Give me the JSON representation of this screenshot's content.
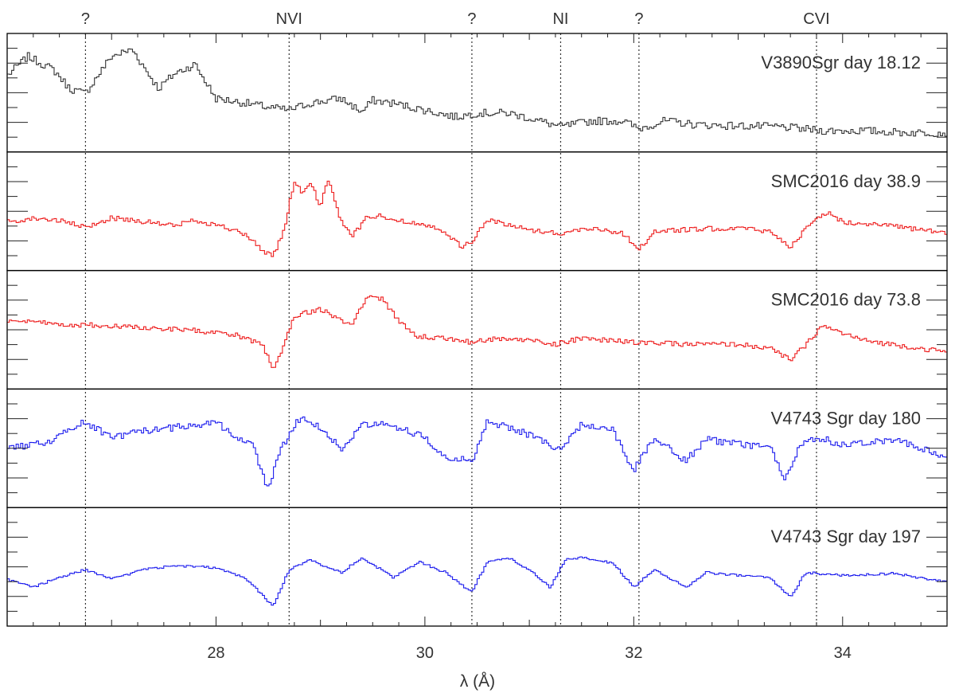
{
  "chart_data": {
    "type": "line",
    "xlabel": "λ (Å)",
    "xlim": [
      26.0,
      35.0
    ],
    "x_ticks": [
      "28",
      "30",
      "32",
      "34"
    ],
    "x_tick_values": [
      28,
      30,
      32,
      34
    ],
    "lines": [
      {
        "x": 26.75,
        "label": "?"
      },
      {
        "x": 28.7,
        "label": "NVI"
      },
      {
        "x": 30.45,
        "label": "?"
      },
      {
        "x": 31.3,
        "label": "NI"
      },
      {
        "x": 32.05,
        "label": "?"
      },
      {
        "x": 33.75,
        "label": "CVI"
      }
    ],
    "ylim": [
      0,
      1
    ],
    "series": [
      {
        "name": "V3890Sgr day 18.12",
        "color": "#333333",
        "noise": 0.04,
        "x": [
          26.0,
          26.2,
          26.45,
          26.6,
          26.75,
          27.0,
          27.2,
          27.45,
          27.6,
          27.8,
          28.0,
          28.3,
          28.5,
          28.7,
          28.9,
          29.2,
          29.4,
          29.5,
          29.7,
          30.0,
          30.3,
          30.5,
          30.8,
          31.0,
          31.3,
          31.6,
          31.9,
          32.05,
          32.3,
          32.6,
          33.0,
          33.4,
          33.8,
          34.2,
          34.6,
          35.0
        ],
        "y": [
          0.68,
          0.88,
          0.74,
          0.55,
          0.5,
          0.88,
          0.95,
          0.55,
          0.7,
          0.8,
          0.45,
          0.4,
          0.36,
          0.33,
          0.4,
          0.45,
          0.31,
          0.43,
          0.4,
          0.33,
          0.26,
          0.3,
          0.3,
          0.25,
          0.16,
          0.22,
          0.22,
          0.14,
          0.22,
          0.18,
          0.17,
          0.16,
          0.12,
          0.12,
          0.1,
          0.1
        ]
      },
      {
        "name": "SMC2016 day 38.9",
        "color": "#ee1c1c",
        "noise": 0.025,
        "x": [
          26.0,
          26.3,
          26.55,
          26.75,
          27.0,
          27.2,
          27.6,
          27.8,
          28.1,
          28.3,
          28.45,
          28.55,
          28.65,
          28.75,
          28.82,
          28.92,
          29.0,
          29.08,
          29.2,
          29.3,
          29.45,
          29.6,
          29.8,
          30.0,
          30.2,
          30.35,
          30.45,
          30.6,
          31.0,
          31.3,
          31.6,
          31.9,
          32.05,
          32.2,
          32.5,
          33.0,
          33.3,
          33.5,
          33.7,
          33.85,
          34.0,
          34.3,
          35.0
        ],
        "y": [
          0.4,
          0.44,
          0.4,
          0.34,
          0.44,
          0.42,
          0.36,
          0.42,
          0.34,
          0.26,
          0.1,
          0.06,
          0.3,
          0.82,
          0.7,
          0.78,
          0.55,
          0.85,
          0.4,
          0.25,
          0.45,
          0.46,
          0.4,
          0.38,
          0.3,
          0.14,
          0.2,
          0.42,
          0.32,
          0.28,
          0.34,
          0.28,
          0.12,
          0.3,
          0.32,
          0.34,
          0.3,
          0.15,
          0.38,
          0.5,
          0.4,
          0.38,
          0.28
        ]
      },
      {
        "name": "SMC2016 day 73.8",
        "color": "#ee1c1c",
        "noise": 0.025,
        "x": [
          26.0,
          26.6,
          27.0,
          27.8,
          28.2,
          28.45,
          28.55,
          28.75,
          29.0,
          29.3,
          29.45,
          29.6,
          29.75,
          29.9,
          30.2,
          30.45,
          30.7,
          31.0,
          31.25,
          31.5,
          32.0,
          32.5,
          33.0,
          33.3,
          33.5,
          33.65,
          33.8,
          34.2,
          35.0
        ],
        "y": [
          0.6,
          0.56,
          0.55,
          0.5,
          0.45,
          0.35,
          0.08,
          0.65,
          0.72,
          0.55,
          0.85,
          0.82,
          0.6,
          0.45,
          0.42,
          0.38,
          0.42,
          0.4,
          0.36,
          0.42,
          0.38,
          0.36,
          0.36,
          0.32,
          0.2,
          0.35,
          0.55,
          0.4,
          0.28
        ]
      },
      {
        "name": "V4743 Sgr day 180",
        "color": "#1c1cee",
        "noise": 0.035,
        "x": [
          26.0,
          26.4,
          26.75,
          27.0,
          27.3,
          27.6,
          28.0,
          28.2,
          28.35,
          28.5,
          28.6,
          28.75,
          28.85,
          29.0,
          29.2,
          29.4,
          29.6,
          29.8,
          30.0,
          30.2,
          30.45,
          30.6,
          30.8,
          31.0,
          31.2,
          31.3,
          31.5,
          31.8,
          32.0,
          32.2,
          32.5,
          32.7,
          33.0,
          33.3,
          33.45,
          33.6,
          33.75,
          34.0,
          34.5,
          35.0
        ],
        "y": [
          0.5,
          0.58,
          0.78,
          0.62,
          0.68,
          0.72,
          0.78,
          0.62,
          0.55,
          0.08,
          0.45,
          0.75,
          0.82,
          0.72,
          0.5,
          0.75,
          0.78,
          0.7,
          0.62,
          0.42,
          0.38,
          0.78,
          0.72,
          0.65,
          0.55,
          0.48,
          0.75,
          0.7,
          0.28,
          0.62,
          0.38,
          0.6,
          0.55,
          0.52,
          0.2,
          0.55,
          0.62,
          0.55,
          0.6,
          0.42
        ]
      },
      {
        "name": "V4743 Sgr day 197",
        "color": "#1c1cee",
        "noise": 0.012,
        "x": [
          26.0,
          26.25,
          26.5,
          26.75,
          27.0,
          27.3,
          27.6,
          28.0,
          28.3,
          28.55,
          28.7,
          28.9,
          29.2,
          29.4,
          29.7,
          29.95,
          30.2,
          30.45,
          30.6,
          30.8,
          31.0,
          31.2,
          31.35,
          31.5,
          31.8,
          32.0,
          32.2,
          32.5,
          32.7,
          33.0,
          33.3,
          33.5,
          33.65,
          34.0,
          34.5,
          35.0
        ],
        "y": [
          0.38,
          0.3,
          0.4,
          0.48,
          0.38,
          0.48,
          0.52,
          0.5,
          0.38,
          0.1,
          0.48,
          0.58,
          0.45,
          0.6,
          0.4,
          0.56,
          0.45,
          0.25,
          0.56,
          0.6,
          0.48,
          0.3,
          0.58,
          0.6,
          0.55,
          0.3,
          0.48,
          0.3,
          0.45,
          0.42,
          0.4,
          0.2,
          0.45,
          0.42,
          0.44,
          0.35
        ]
      }
    ]
  }
}
